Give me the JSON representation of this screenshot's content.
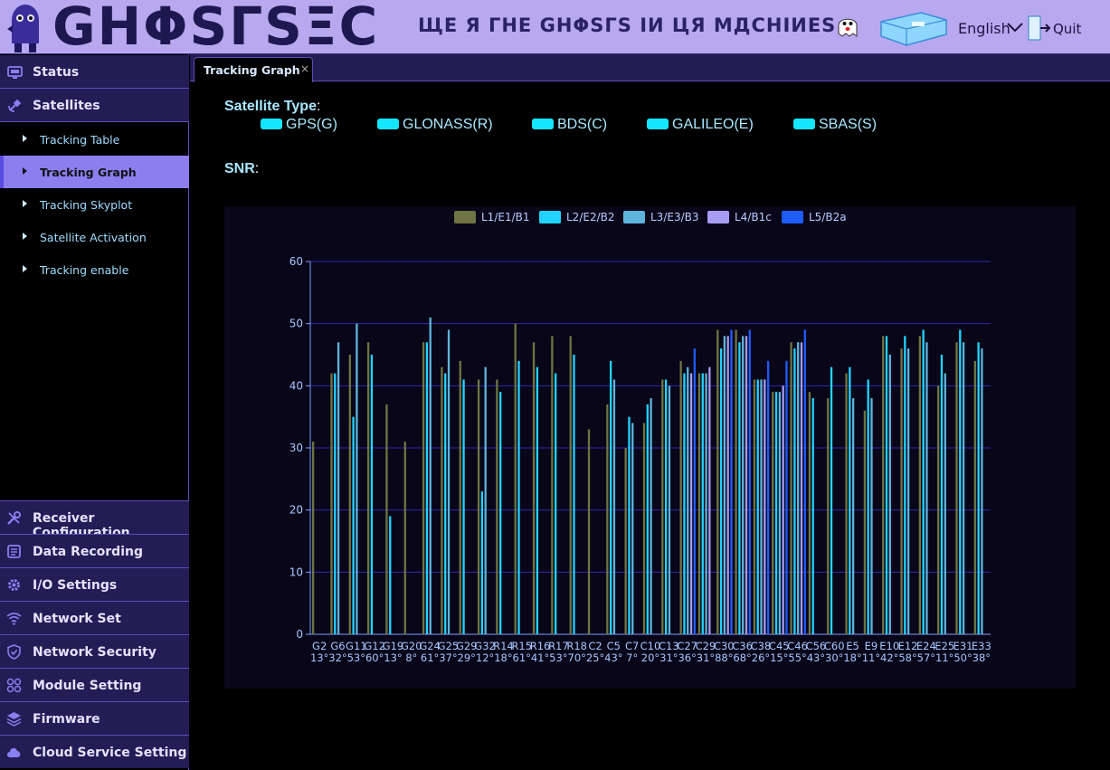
{
  "header": {
    "logo": "GHΦSΓSΞC",
    "tagline": "ЩЕ Я ГНЕ GHΦSΓS IИ ЦЯ MДCHIИES",
    "language": "English",
    "quit_label": "Quit"
  },
  "sidebar": {
    "top": [
      {
        "label": "Status",
        "icon": "monitor-icon"
      },
      {
        "label": "Satellites",
        "icon": "satellite-icon"
      }
    ],
    "sub": [
      {
        "label": "Tracking Table"
      },
      {
        "label": "Tracking Graph",
        "active": true
      },
      {
        "label": "Tracking Skyplot"
      },
      {
        "label": "Satellite Activation"
      },
      {
        "label": "Tracking enable"
      }
    ],
    "bottom": [
      {
        "label": "Receiver Configuration",
        "icon": "tools-icon"
      },
      {
        "label": "Data Recording",
        "icon": "recording-icon"
      },
      {
        "label": "I/O Settings",
        "icon": "gear-icon"
      },
      {
        "label": "Network Set",
        "icon": "wifi-icon"
      },
      {
        "label": "Network Security",
        "icon": "shield-icon"
      },
      {
        "label": "Module Setting",
        "icon": "modules-icon"
      },
      {
        "label": "Firmware",
        "icon": "layers-icon"
      },
      {
        "label": "Cloud Service Setting",
        "icon": "cloud-icon"
      }
    ]
  },
  "tab": {
    "label": "Tracking Graph",
    "close": "×"
  },
  "main": {
    "satellite_type_label": "Satellite Type",
    "colon": ":",
    "snr_label": "SNR",
    "satellite_types": [
      "GPS(G)",
      "GLONASS(R)",
      "BDS(C)",
      "GALILEO(E)",
      "SBAS(S)"
    ]
  },
  "colors": {
    "accent": "#8d7ef0",
    "header_bg": "#b8a8f0",
    "nav_bg": "#231c55",
    "sat_type_swatch": "#14e6ff"
  },
  "chart_data": {
    "type": "bar",
    "ylim": [
      0,
      60
    ],
    "yticks": [
      0,
      10,
      20,
      30,
      40,
      50,
      60
    ],
    "grid": true,
    "legend_position": "top",
    "series": [
      {
        "name": "L1/E1/B1",
        "color": "#6e7443"
      },
      {
        "name": "L2/E2/B2",
        "color": "#22d4ff"
      },
      {
        "name": "L3/E3/B3",
        "color": "#5fb4dc"
      },
      {
        "name": "L4/B1c",
        "color": "#a89cf2"
      },
      {
        "name": "L5/B2a",
        "color": "#1f5cff"
      }
    ],
    "categories": [
      {
        "id": "G2",
        "elev": "13°",
        "values": [
          31,
          null,
          null,
          null,
          null
        ]
      },
      {
        "id": "G6",
        "elev": "32°",
        "values": [
          42,
          42,
          47,
          null,
          null
        ]
      },
      {
        "id": "G11",
        "elev": "53°",
        "values": [
          45,
          35,
          50,
          null,
          null
        ]
      },
      {
        "id": "G12",
        "elev": "60°",
        "values": [
          47,
          45,
          null,
          null,
          null
        ]
      },
      {
        "id": "G19",
        "elev": "13°",
        "values": [
          37,
          19,
          null,
          null,
          null
        ]
      },
      {
        "id": "G20",
        "elev": "8°",
        "values": [
          31,
          null,
          null,
          null,
          null
        ]
      },
      {
        "id": "G24",
        "elev": "61°",
        "values": [
          47,
          47,
          51,
          null,
          null
        ]
      },
      {
        "id": "G25",
        "elev": "37°",
        "values": [
          43,
          42,
          49,
          null,
          null
        ]
      },
      {
        "id": "G29",
        "elev": "29°",
        "values": [
          44,
          41,
          null,
          null,
          null
        ]
      },
      {
        "id": "G32",
        "elev": "12°",
        "values": [
          41,
          23,
          43,
          null,
          null
        ]
      },
      {
        "id": "R14",
        "elev": "18°",
        "values": [
          41,
          39,
          null,
          null,
          null
        ]
      },
      {
        "id": "R15",
        "elev": "61°",
        "values": [
          50,
          44,
          null,
          null,
          null
        ]
      },
      {
        "id": "R16",
        "elev": "41°",
        "values": [
          47,
          43,
          null,
          null,
          null
        ]
      },
      {
        "id": "R17",
        "elev": "53°",
        "values": [
          48,
          42,
          null,
          null,
          null
        ]
      },
      {
        "id": "R18",
        "elev": "70°",
        "values": [
          48,
          45,
          null,
          null,
          null
        ]
      },
      {
        "id": "C2",
        "elev": "25°",
        "values": [
          33,
          null,
          null,
          null,
          null
        ]
      },
      {
        "id": "C5",
        "elev": "43°",
        "values": [
          37,
          44,
          41,
          null,
          null
        ]
      },
      {
        "id": "C7",
        "elev": "7°",
        "values": [
          30,
          35,
          34,
          null,
          null
        ]
      },
      {
        "id": "C10",
        "elev": "20°",
        "values": [
          34,
          37,
          38,
          null,
          null
        ]
      },
      {
        "id": "C13",
        "elev": "31°",
        "values": [
          41,
          41,
          40,
          null,
          null
        ]
      },
      {
        "id": "C27",
        "elev": "36°",
        "values": [
          44,
          42,
          43,
          42,
          46
        ]
      },
      {
        "id": "C29",
        "elev": "31°",
        "values": [
          42,
          42,
          42,
          43,
          null
        ]
      },
      {
        "id": "C30",
        "elev": "88°",
        "values": [
          49,
          46,
          48,
          48,
          49
        ]
      },
      {
        "id": "C36",
        "elev": "68°",
        "values": [
          49,
          47,
          48,
          48,
          49
        ]
      },
      {
        "id": "C38",
        "elev": "26°",
        "values": [
          41,
          41,
          41,
          41,
          44
        ]
      },
      {
        "id": "C45",
        "elev": "15°",
        "values": [
          39,
          39,
          39,
          40,
          44
        ]
      },
      {
        "id": "C46",
        "elev": "55°",
        "values": [
          47,
          46,
          47,
          47,
          49
        ]
      },
      {
        "id": "C56",
        "elev": "43°",
        "values": [
          39,
          38,
          null,
          null,
          null
        ]
      },
      {
        "id": "C60",
        "elev": "30°",
        "values": [
          38,
          43,
          null,
          null,
          null
        ]
      },
      {
        "id": "E5",
        "elev": "18°",
        "values": [
          42,
          43,
          38,
          null,
          null
        ]
      },
      {
        "id": "E9",
        "elev": "11°",
        "values": [
          36,
          41,
          38,
          null,
          null
        ]
      },
      {
        "id": "E10",
        "elev": "42°",
        "values": [
          48,
          48,
          45,
          null,
          null
        ]
      },
      {
        "id": "E12",
        "elev": "58°",
        "values": [
          46,
          48,
          46,
          null,
          null
        ]
      },
      {
        "id": "E24",
        "elev": "57°",
        "values": [
          48,
          49,
          47,
          null,
          null
        ]
      },
      {
        "id": "E25",
        "elev": "11°",
        "values": [
          40,
          45,
          42,
          null,
          null
        ]
      },
      {
        "id": "E31",
        "elev": "50°",
        "values": [
          47,
          49,
          47,
          null,
          null
        ]
      },
      {
        "id": "E33",
        "elev": "38°",
        "values": [
          44,
          47,
          46,
          null,
          null
        ]
      }
    ]
  }
}
